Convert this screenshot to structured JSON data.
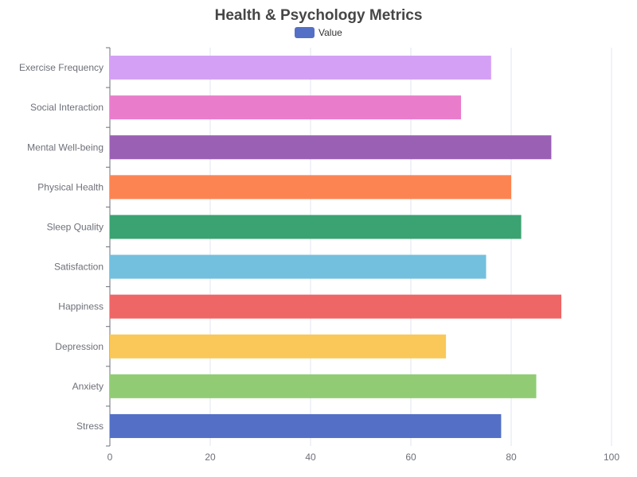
{
  "chart_data": {
    "type": "bar",
    "orientation": "horizontal",
    "title": "Health & Psychology Metrics",
    "categories": [
      "Stress",
      "Anxiety",
      "Depression",
      "Happiness",
      "Satisfaction",
      "Sleep Quality",
      "Physical Health",
      "Mental Well-being",
      "Social Interaction",
      "Exercise Frequency"
    ],
    "series": [
      {
        "name": "Value",
        "values": [
          78,
          85,
          67,
          90,
          75,
          82,
          80,
          88,
          70,
          76
        ]
      }
    ],
    "bar_colors": [
      "#5470c6",
      "#91cc75",
      "#fac858",
      "#ee6666",
      "#73c0de",
      "#3ba272",
      "#fc8452",
      "#9a60b4",
      "#ea7ccc",
      "#d4a0f5"
    ],
    "legend_color": "#5470c6",
    "x_ticks": [
      "0",
      "20",
      "40",
      "60",
      "80",
      "100"
    ],
    "xlim": [
      0,
      100
    ],
    "grid": true,
    "legend_position": "top-center"
  }
}
